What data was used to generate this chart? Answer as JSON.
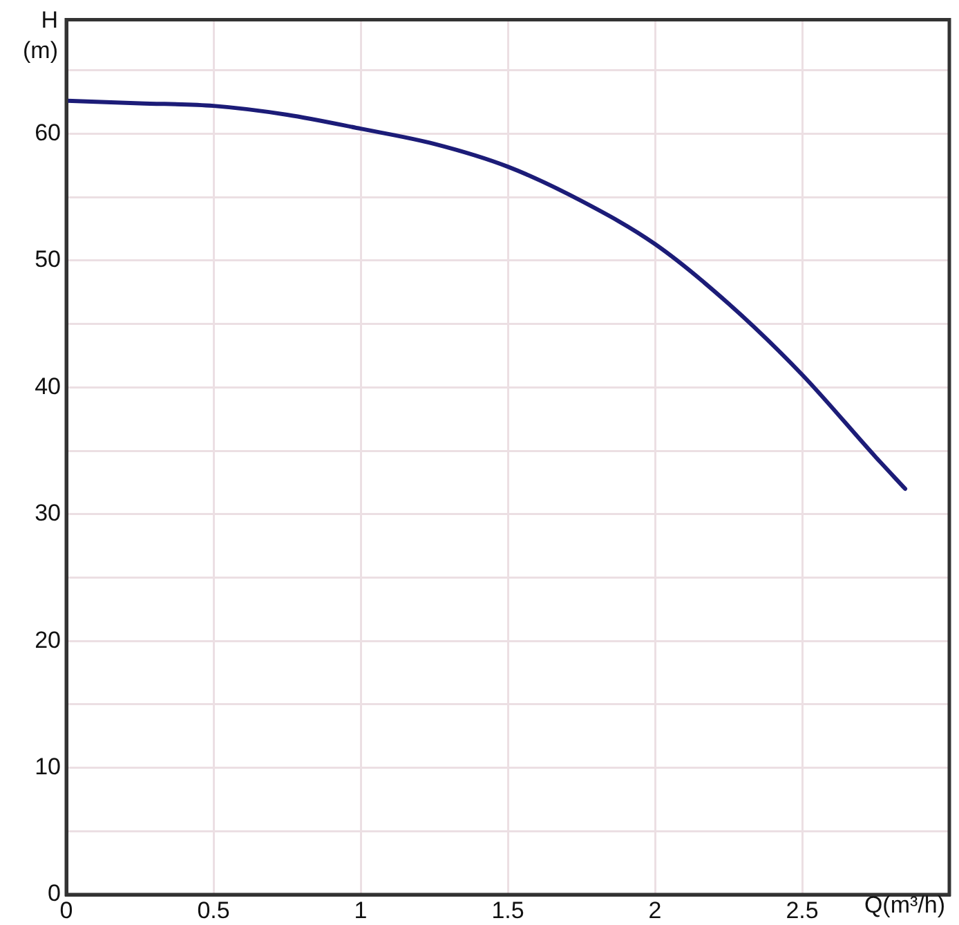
{
  "chart_data": {
    "type": "line",
    "xlabel": "Q(m³/h)",
    "ylabel": "H (m)",
    "x": [
      0,
      0.25,
      0.5,
      0.75,
      1,
      1.25,
      1.5,
      1.75,
      2,
      2.25,
      2.5,
      2.75,
      2.85
    ],
    "series": [
      {
        "color": "#1c1c78",
        "values": [
          62.6,
          62.4,
          62.2,
          61.5,
          60.4,
          59.2,
          57.4,
          54.7,
          51.3,
          46.6,
          41,
          34.5,
          32
        ]
      }
    ],
    "xlim": [
      0,
      3
    ],
    "xticks": [
      0,
      0.5,
      1,
      1.5,
      2,
      2.5
    ],
    "ylim": [
      0,
      69
    ],
    "yticks": [
      0,
      {
        "value": 5,
        "label": null
      },
      10,
      {
        "value": 15,
        "label": null
      },
      20,
      {
        "value": 25,
        "label": null
      },
      30,
      {
        "value": 35,
        "label": null
      },
      40,
      {
        "value": 45,
        "label": null
      },
      50,
      {
        "value": 55,
        "label": null
      },
      60,
      {
        "value": 65,
        "label": null
      }
    ],
    "grid": true,
    "marker": "none",
    "line_style": "solid"
  }
}
